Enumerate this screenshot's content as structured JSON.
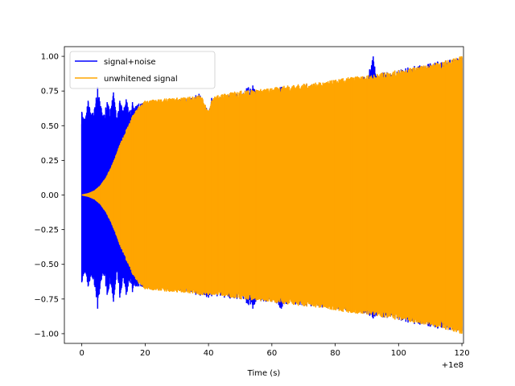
{
  "chart_data": {
    "type": "line",
    "title": "",
    "xlabel": "Time (s)",
    "ylabel": "",
    "x_offset_label": "+1e8",
    "xlim": [
      -5.5,
      120.5
    ],
    "ylim": [
      -1.07,
      1.07
    ],
    "x_ticks": [
      0,
      20,
      40,
      60,
      80,
      100,
      120
    ],
    "x_tick_labels": [
      "0",
      "20",
      "40",
      "60",
      "80",
      "100",
      "120"
    ],
    "y_ticks": [
      1.0,
      0.75,
      0.5,
      0.25,
      0.0,
      -0.25,
      -0.5,
      -0.75,
      -1.0
    ],
    "y_tick_labels": [
      "1.00",
      "0.75",
      "0.50",
      "0.25",
      "0.00",
      "−0.25",
      "−0.50",
      "−0.75",
      "−1.00"
    ],
    "grid": false,
    "legend_position": "top-left",
    "series": [
      {
        "name": "signal+noise",
        "color": "#0000ff",
        "x": [
          0,
          1,
          2,
          3,
          4,
          5,
          6,
          7,
          8,
          9,
          10,
          11,
          12,
          13,
          14,
          15,
          16,
          17,
          18,
          19,
          20,
          25,
          30,
          35,
          36,
          37,
          40,
          41,
          45,
          50,
          52,
          54,
          55,
          60,
          63,
          65,
          70,
          71,
          75,
          80,
          85,
          88,
          89,
          90,
          92,
          93,
          95,
          100,
          105,
          110,
          115,
          120
        ],
        "upper": [
          0.6,
          0.55,
          0.68,
          0.58,
          0.62,
          0.78,
          0.64,
          0.58,
          0.67,
          0.62,
          0.74,
          0.56,
          0.68,
          0.61,
          0.69,
          0.6,
          0.67,
          0.64,
          0.66,
          0.66,
          0.66,
          0.67,
          0.69,
          0.7,
          0.72,
          0.73,
          0.6,
          0.7,
          0.72,
          0.73,
          0.77,
          0.79,
          0.74,
          0.75,
          0.78,
          0.76,
          0.77,
          0.8,
          0.78,
          0.8,
          0.83,
          0.82,
          0.85,
          0.84,
          1.0,
          0.86,
          0.88,
          0.9,
          0.93,
          0.95,
          0.97,
          0.99
        ],
        "lower": [
          -0.63,
          -0.56,
          -0.66,
          -0.58,
          -0.65,
          -0.82,
          -0.62,
          -0.58,
          -0.72,
          -0.64,
          -0.77,
          -0.55,
          -0.74,
          -0.6,
          -0.72,
          -0.62,
          -0.7,
          -0.66,
          -0.66,
          -0.66,
          -0.66,
          -0.68,
          -0.69,
          -0.7,
          -0.72,
          -0.72,
          -0.74,
          -0.73,
          -0.74,
          -0.75,
          -0.78,
          -0.82,
          -0.76,
          -0.77,
          -0.82,
          -0.78,
          -0.8,
          -0.8,
          -0.81,
          -0.82,
          -0.84,
          -0.84,
          -0.85,
          -0.86,
          -0.89,
          -0.87,
          -0.88,
          -0.9,
          -0.93,
          -0.95,
          -0.97,
          -0.98
        ]
      },
      {
        "name": "unwhitened signal",
        "color": "#ffa500",
        "x": [
          0,
          2,
          4,
          6,
          8,
          10,
          12,
          14,
          16,
          18,
          20,
          25,
          30,
          35,
          37,
          38,
          39,
          40,
          41,
          42,
          43,
          45,
          50,
          55,
          60,
          65,
          70,
          75,
          80,
          85,
          90,
          95,
          100,
          105,
          110,
          115,
          120
        ],
        "upper": [
          0.0,
          0.01,
          0.03,
          0.07,
          0.14,
          0.24,
          0.36,
          0.47,
          0.57,
          0.64,
          0.68,
          0.69,
          0.7,
          0.71,
          0.72,
          0.7,
          0.65,
          0.6,
          0.68,
          0.71,
          0.72,
          0.73,
          0.75,
          0.76,
          0.77,
          0.79,
          0.8,
          0.81,
          0.83,
          0.85,
          0.86,
          0.88,
          0.9,
          0.92,
          0.94,
          0.97,
          1.0
        ],
        "lower": [
          0.0,
          -0.01,
          -0.03,
          -0.07,
          -0.14,
          -0.24,
          -0.36,
          -0.47,
          -0.57,
          -0.64,
          -0.68,
          -0.69,
          -0.7,
          -0.71,
          -0.72,
          -0.72,
          -0.72,
          -0.72,
          -0.72,
          -0.72,
          -0.72,
          -0.73,
          -0.75,
          -0.76,
          -0.77,
          -0.79,
          -0.8,
          -0.81,
          -0.83,
          -0.85,
          -0.86,
          -0.88,
          -0.9,
          -0.92,
          -0.94,
          -0.97,
          -1.0
        ]
      }
    ]
  }
}
